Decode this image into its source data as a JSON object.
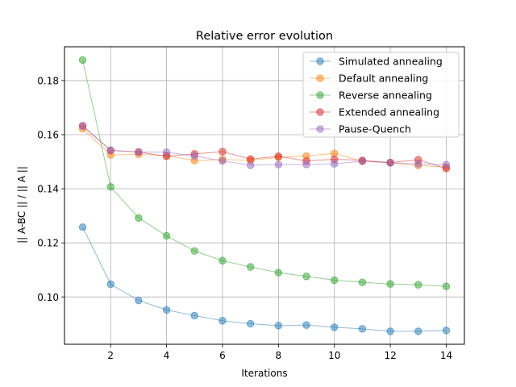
{
  "chart_data": {
    "type": "line",
    "title": "Relative error evolution",
    "xlabel": "Iterations",
    "ylabel": "|| A-BC || / || A ||",
    "xlim": [
      0.35,
      14.65
    ],
    "ylim": [
      0.0825,
      0.1925
    ],
    "x_ticks": [
      2,
      4,
      6,
      8,
      10,
      12,
      14
    ],
    "y_ticks": [
      0.1,
      0.12,
      0.14,
      0.16,
      0.18
    ],
    "y_tick_labels": [
      "0.10",
      "0.12",
      "0.14",
      "0.16",
      "0.18"
    ],
    "grid": true,
    "legend_position": "top-right",
    "x": [
      1,
      2,
      3,
      4,
      5,
      6,
      7,
      8,
      9,
      10,
      11,
      12,
      13,
      14
    ],
    "series": [
      {
        "name": "Simulated annealing",
        "color": "#1f77b4",
        "values": [
          0.1258,
          0.1047,
          0.0987,
          0.0952,
          0.0931,
          0.0912,
          0.0901,
          0.0894,
          0.0896,
          0.0888,
          0.0882,
          0.0873,
          0.0873,
          0.0876
        ]
      },
      {
        "name": "Default annealing",
        "color": "#ff7f0e",
        "values": [
          0.1622,
          0.1525,
          0.1527,
          0.1523,
          0.1504,
          0.1508,
          0.1505,
          0.1516,
          0.1521,
          0.1531,
          0.1502,
          0.1496,
          0.1486,
          0.148
        ]
      },
      {
        "name": "Reverse annealing",
        "color": "#2ca02c",
        "values": [
          0.1876,
          0.1407,
          0.1292,
          0.1226,
          0.117,
          0.1134,
          0.1111,
          0.109,
          0.1076,
          0.1062,
          0.1054,
          0.1048,
          0.1045,
          0.1039
        ]
      },
      {
        "name": "Extended annealing",
        "color": "#d62728",
        "values": [
          0.1632,
          0.1542,
          0.1536,
          0.152,
          0.1529,
          0.1537,
          0.151,
          0.152,
          0.1503,
          0.1509,
          0.1505,
          0.1497,
          0.1507,
          0.1475
        ]
      },
      {
        "name": "Pause-Quench",
        "color": "#9467bd",
        "values": [
          0.1633,
          0.1542,
          0.1536,
          0.1535,
          0.1521,
          0.1503,
          0.1487,
          0.1489,
          0.149,
          0.1492,
          0.1502,
          0.1496,
          0.1492,
          0.1489
        ]
      }
    ]
  }
}
